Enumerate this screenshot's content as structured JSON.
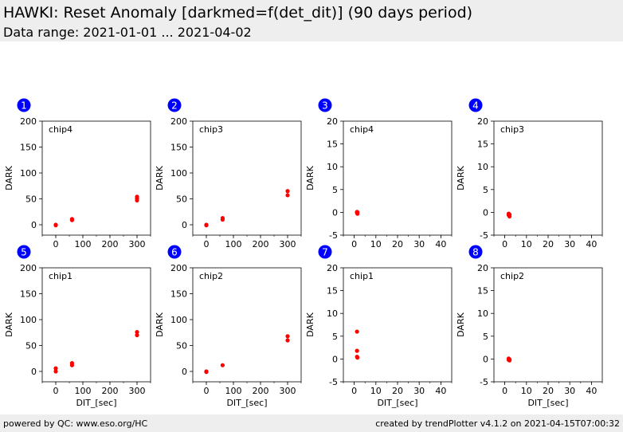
{
  "header": {
    "title": "HAWKI: Reset Anomaly [darkmed=f(det_dit)] (90 days period)",
    "subtitle": "Data range: 2021-01-01 ... 2021-04-02"
  },
  "footer": {
    "left": "powered by QC: www.eso.org/HC",
    "right": "created by trendPlotter v4.1.2 on 2021-04-15T07:00:32"
  },
  "colors": {
    "points": "#ff0000",
    "badge": "#0000ff",
    "header_bg": "#eeeeee"
  },
  "chart_data": [
    {
      "id": "1",
      "type": "scatter",
      "label": "chip4",
      "xlabel": "",
      "ylabel": "DARK",
      "xlim": [
        -50,
        350
      ],
      "ylim": [
        -20,
        200
      ],
      "xticks": [
        0,
        100,
        200,
        300
      ],
      "yticks": [
        0,
        50,
        100,
        150,
        200
      ],
      "x": [
        0,
        0,
        60,
        60,
        300,
        300,
        300
      ],
      "y": [
        0,
        -1,
        9,
        11,
        47,
        51,
        54
      ]
    },
    {
      "id": "2",
      "type": "scatter",
      "label": "chip3",
      "xlabel": "",
      "ylabel": "DARK",
      "xlim": [
        -50,
        350
      ],
      "ylim": [
        -20,
        200
      ],
      "xticks": [
        0,
        100,
        200,
        300
      ],
      "yticks": [
        0,
        50,
        100,
        150,
        200
      ],
      "x": [
        0,
        0,
        60,
        60,
        300,
        300
      ],
      "y": [
        0,
        -1,
        10,
        13,
        57,
        65
      ]
    },
    {
      "id": "3",
      "type": "scatter",
      "label": "chip4",
      "xlabel": "",
      "ylabel": "DARK",
      "xlim": [
        -5,
        45
      ],
      "ylim": [
        -5,
        20
      ],
      "xticks": [
        0,
        10,
        20,
        30,
        40
      ],
      "yticks": [
        -5,
        0,
        5,
        10,
        15,
        20
      ],
      "x": [
        1.3,
        1.3,
        1.5,
        1.5
      ],
      "y": [
        0.1,
        -0.1,
        -0.3,
        0
      ]
    },
    {
      "id": "4",
      "type": "scatter",
      "label": "chip3",
      "xlabel": "",
      "ylabel": "DARK",
      "xlim": [
        -5,
        45
      ],
      "ylim": [
        -5,
        20
      ],
      "xticks": [
        0,
        10,
        20,
        30,
        40
      ],
      "yticks": [
        -5,
        0,
        5,
        10,
        15,
        20
      ],
      "x": [
        1.8,
        1.8,
        2.2,
        2.2
      ],
      "y": [
        -0.3,
        -0.6,
        -0.5,
        -0.9
      ]
    },
    {
      "id": "5",
      "type": "scatter",
      "label": "chip1",
      "xlabel": "DIT_[sec]",
      "ylabel": "DARK",
      "xlim": [
        -50,
        350
      ],
      "ylim": [
        -20,
        200
      ],
      "xticks": [
        0,
        100,
        200,
        300
      ],
      "yticks": [
        0,
        50,
        100,
        150,
        200
      ],
      "x": [
        0,
        0,
        60,
        60,
        300,
        300
      ],
      "y": [
        6,
        0,
        12,
        16,
        70,
        76
      ]
    },
    {
      "id": "6",
      "type": "scatter",
      "label": "chip2",
      "xlabel": "DIT_[sec]",
      "ylabel": "DARK",
      "xlim": [
        -50,
        350
      ],
      "ylim": [
        -20,
        200
      ],
      "xticks": [
        0,
        100,
        200,
        300
      ],
      "yticks": [
        0,
        50,
        100,
        150,
        200
      ],
      "x": [
        0,
        0,
        60,
        300,
        300
      ],
      "y": [
        0,
        -1,
        12,
        60,
        68
      ]
    },
    {
      "id": "7",
      "type": "scatter",
      "label": "chip1",
      "xlabel": "DIT_[sec]",
      "ylabel": "DARK",
      "xlim": [
        -5,
        45
      ],
      "ylim": [
        -5,
        20
      ],
      "xticks": [
        0,
        10,
        20,
        30,
        40
      ],
      "yticks": [
        -5,
        0,
        5,
        10,
        15,
        20
      ],
      "x": [
        1.3,
        1.3,
        1.3,
        1.5
      ],
      "y": [
        6.0,
        1.8,
        0.5,
        0.3
      ]
    },
    {
      "id": "8",
      "type": "scatter",
      "label": "chip2",
      "xlabel": "DIT_[sec]",
      "ylabel": "DARK",
      "xlim": [
        -5,
        45
      ],
      "ylim": [
        -5,
        20
      ],
      "xticks": [
        0,
        10,
        20,
        30,
        40
      ],
      "yticks": [
        -5,
        0,
        5,
        10,
        15,
        20
      ],
      "x": [
        1.8,
        1.8,
        2.2,
        2.2
      ],
      "y": [
        0.1,
        -0.2,
        -0.1,
        -0.3
      ]
    }
  ]
}
